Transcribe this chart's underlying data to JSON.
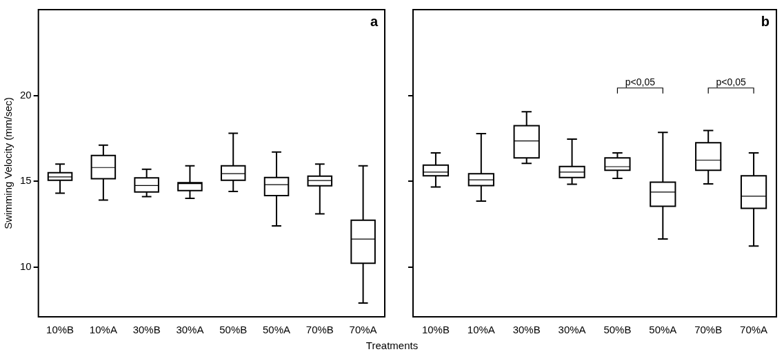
{
  "chart_data": [
    {
      "type": "box",
      "xlabel": "Treatments",
      "ylabel": "Swimming Velocity (mm/sec)",
      "categories": [
        "10%B",
        "10%A",
        "30%B",
        "30%A",
        "50%B",
        "50%A",
        "70%B",
        "70%A"
      ],
      "boxes": [
        {
          "low": 14.3,
          "q1": 15.06,
          "median": 15.25,
          "q3": 15.5,
          "high": 16.0
        },
        {
          "low": 13.9,
          "q1": 15.15,
          "median": 15.8,
          "q3": 16.5,
          "high": 17.1
        },
        {
          "low": 14.1,
          "q1": 14.37,
          "median": 14.75,
          "q3": 15.2,
          "high": 15.7
        },
        {
          "low": 14.0,
          "q1": 14.45,
          "median": 14.86,
          "q3": 14.92,
          "high": 15.9
        },
        {
          "low": 14.4,
          "q1": 15.06,
          "median": 15.44,
          "q3": 15.9,
          "high": 17.8
        },
        {
          "low": 12.4,
          "q1": 14.16,
          "median": 14.8,
          "q3": 15.22,
          "high": 16.7
        },
        {
          "low": 13.1,
          "q1": 14.74,
          "median": 15.04,
          "q3": 15.3,
          "high": 16.0
        },
        {
          "low": 7.9,
          "q1": 10.22,
          "median": 11.63,
          "q3": 12.73,
          "high": 15.9
        }
      ],
      "ylim": [
        7.1,
        25
      ],
      "yticks": [
        10,
        15,
        20
      ],
      "grid": false,
      "annotations": [
        "a"
      ]
    },
    {
      "type": "box",
      "categories": [
        "10%B",
        "10%A",
        "30%B",
        "30%A",
        "50%B",
        "50%A",
        "70%B",
        "70%A"
      ],
      "boxes": [
        {
          "low": 14.67,
          "q1": 15.32,
          "median": 15.53,
          "q3": 15.94,
          "high": 16.65
        },
        {
          "low": 13.84,
          "q1": 14.75,
          "median": 15.08,
          "q3": 15.44,
          "high": 17.78
        },
        {
          "low": 16.04,
          "q1": 16.36,
          "median": 17.35,
          "q3": 18.24,
          "high": 19.05
        },
        {
          "low": 14.83,
          "q1": 15.22,
          "median": 15.53,
          "q3": 15.86,
          "high": 17.45
        },
        {
          "low": 15.17,
          "q1": 15.64,
          "median": 15.85,
          "q3": 16.36,
          "high": 16.65
        },
        {
          "low": 11.64,
          "q1": 13.54,
          "median": 14.37,
          "q3": 14.95,
          "high": 17.85
        },
        {
          "low": 14.85,
          "q1": 15.64,
          "median": 16.23,
          "q3": 17.24,
          "high": 17.96
        },
        {
          "low": 11.22,
          "q1": 13.42,
          "median": 14.13,
          "q3": 15.32,
          "high": 16.65
        }
      ],
      "ylim": [
        7.1,
        25
      ],
      "yticks": [
        10,
        15,
        20
      ],
      "grid": false,
      "tick_labels": "x",
      "annotations": [
        "b",
        "p<0,05",
        "p<0,05"
      ]
    }
  ]
}
